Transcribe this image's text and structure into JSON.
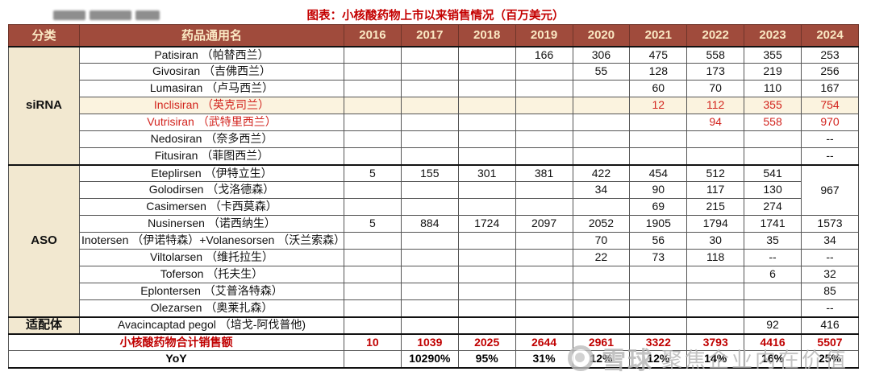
{
  "title": "图表：小核酸药物上市以来销售情况（百万美元）",
  "watermark": {
    "brand": "雪球",
    "tagline": "聚焦企业内在价值"
  },
  "chart_data": {
    "type": "table",
    "title": "图表：小核酸药物上市以来销售情况（百万美元）",
    "unit": "百万美元",
    "columns": [
      "分类",
      "药品通用名",
      "2016",
      "2017",
      "2018",
      "2019",
      "2020",
      "2021",
      "2022",
      "2023",
      "2024"
    ],
    "rows": [
      {
        "group": "siRNA",
        "name": "Patisiran （帕替西兰）",
        "values": [
          "",
          "",
          "",
          "166",
          "306",
          "475",
          "558",
          "355",
          "253"
        ]
      },
      {
        "group": "siRNA",
        "name": "Givosiran （吉佛西兰）",
        "values": [
          "",
          "",
          "",
          "",
          "55",
          "128",
          "173",
          "219",
          "256"
        ]
      },
      {
        "group": "siRNA",
        "name": "Lumasiran （卢马西兰）",
        "values": [
          "",
          "",
          "",
          "",
          "",
          "60",
          "70",
          "110",
          "167"
        ]
      },
      {
        "group": "siRNA",
        "name": "Inclisiran （英克司兰）",
        "values": [
          "",
          "",
          "",
          "",
          "",
          "12",
          "112",
          "355",
          "754"
        ],
        "red": true,
        "highlight": true
      },
      {
        "group": "siRNA",
        "name": "Vutrisiran （武特里西兰）",
        "values": [
          "",
          "",
          "",
          "",
          "",
          "",
          "94",
          "558",
          "970"
        ],
        "red": true
      },
      {
        "group": "siRNA",
        "name": "Nedosiran （奈多西兰）",
        "values": [
          "",
          "",
          "",
          "",
          "",
          "",
          "",
          "",
          "--"
        ]
      },
      {
        "group": "siRNA",
        "name": "Fitusiran （菲图西兰）",
        "values": [
          "",
          "",
          "",
          "",
          "",
          "",
          "",
          "",
          "--"
        ]
      },
      {
        "group": "ASO",
        "name": "Eteplirsen （伊特立生）",
        "values": [
          "5",
          "155",
          "301",
          "381",
          "422",
          "454",
          "512",
          "541",
          "967"
        ],
        "merge_span": 3
      },
      {
        "group": "ASO",
        "name": "Golodirsen （戈洛德森）",
        "values": [
          "",
          "",
          "",
          "",
          "34",
          "90",
          "117",
          "130",
          ""
        ],
        "merged_skip": true
      },
      {
        "group": "ASO",
        "name": "Casimersen （卡西莫森）",
        "values": [
          "",
          "",
          "",
          "",
          "",
          "69",
          "215",
          "274",
          ""
        ],
        "merged_skip": true
      },
      {
        "group": "ASO",
        "name": "Nusinersen （诺西纳生）",
        "values": [
          "5",
          "884",
          "1724",
          "2097",
          "2052",
          "1905",
          "1794",
          "1741",
          "1573"
        ]
      },
      {
        "group": "ASO",
        "name": "Inotersen （伊诺特森）+Volanesorsen （沃兰索森）",
        "values": [
          "",
          "",
          "",
          "",
          "70",
          "56",
          "30",
          "35",
          "34"
        ]
      },
      {
        "group": "ASO",
        "name": "Viltolarsen （维托拉生）",
        "values": [
          "",
          "",
          "",
          "",
          "22",
          "73",
          "118",
          "--",
          "--"
        ]
      },
      {
        "group": "ASO",
        "name": "Toferson （托夫生）",
        "values": [
          "",
          "",
          "",
          "",
          "",
          "",
          "",
          "6",
          "32"
        ]
      },
      {
        "group": "ASO",
        "name": "Eplontersen （艾普洛特森）",
        "values": [
          "",
          "",
          "",
          "",
          "",
          "",
          "",
          "",
          "85"
        ]
      },
      {
        "group": "ASO",
        "name": "Olezarsen （奥莱扎森）",
        "values": [
          "",
          "",
          "",
          "",
          "",
          "",
          "",
          "",
          "--"
        ]
      },
      {
        "group": "适配体",
        "name": "Avacincaptad pegol （培戈-阿伐普他)",
        "values": [
          "",
          "",
          "",
          "",
          "",
          "",
          "",
          "92",
          "416"
        ]
      }
    ],
    "total_row": {
      "label": "小核酸药物合计销售额",
      "values": [
        "10",
        "1039",
        "2025",
        "2644",
        "2961",
        "3322",
        "3793",
        "4416",
        "5507"
      ]
    },
    "yoy_row": {
      "label": "YoY",
      "values": [
        "",
        "10290%",
        "95%",
        "31%",
        "12%",
        "12%",
        "14%",
        "16%",
        "25%"
      ]
    }
  }
}
